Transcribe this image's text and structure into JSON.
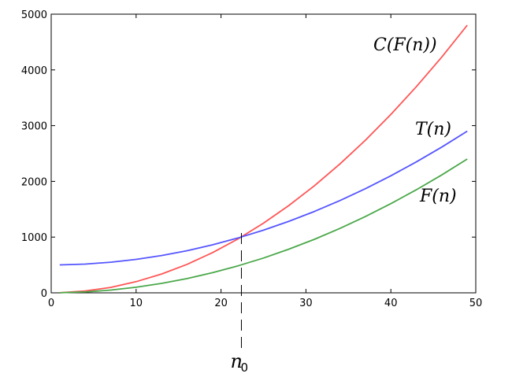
{
  "chart_data": {
    "type": "line",
    "title": "",
    "xlabel": "",
    "ylabel": "",
    "xlim": [
      0,
      50
    ],
    "ylim": [
      0,
      5000
    ],
    "xticks": [
      0,
      10,
      20,
      30,
      40,
      50
    ],
    "yticks": [
      0,
      1000,
      2000,
      3000,
      4000,
      5000
    ],
    "grid": false,
    "legend": "none",
    "series": [
      {
        "name": "C(F(n))",
        "color": "#ff5555",
        "x": [
          1,
          4,
          7,
          10,
          13,
          16,
          19,
          22,
          25,
          28,
          31,
          34,
          37,
          40,
          43,
          46,
          49
        ],
        "y": [
          2,
          32,
          98,
          200,
          338,
          512,
          722,
          968,
          1250,
          1568,
          1922,
          2312,
          2738,
          3200,
          3698,
          4232,
          4802
        ]
      },
      {
        "name": "T(n)",
        "color": "#5555ff",
        "x": [
          1,
          4,
          7,
          10,
          13,
          16,
          19,
          22,
          25,
          28,
          31,
          34,
          37,
          40,
          43,
          46,
          49
        ],
        "y": [
          501,
          516,
          549,
          600,
          669,
          756,
          861,
          984,
          1125,
          1284,
          1461,
          1656,
          1869,
          2100,
          2349,
          2616,
          2901
        ]
      },
      {
        "name": "F(n)",
        "color": "#4aa84a",
        "x": [
          1,
          4,
          7,
          10,
          13,
          16,
          19,
          22,
          25,
          28,
          31,
          34,
          37,
          40,
          43,
          46,
          49
        ],
        "y": [
          1,
          16,
          49,
          100,
          169,
          256,
          361,
          484,
          625,
          784,
          961,
          1156,
          1369,
          1600,
          1849,
          2116,
          2401
        ]
      }
    ],
    "annotations": [
      {
        "text": "n",
        "subscript": "0",
        "x": 22.4
      }
    ]
  }
}
